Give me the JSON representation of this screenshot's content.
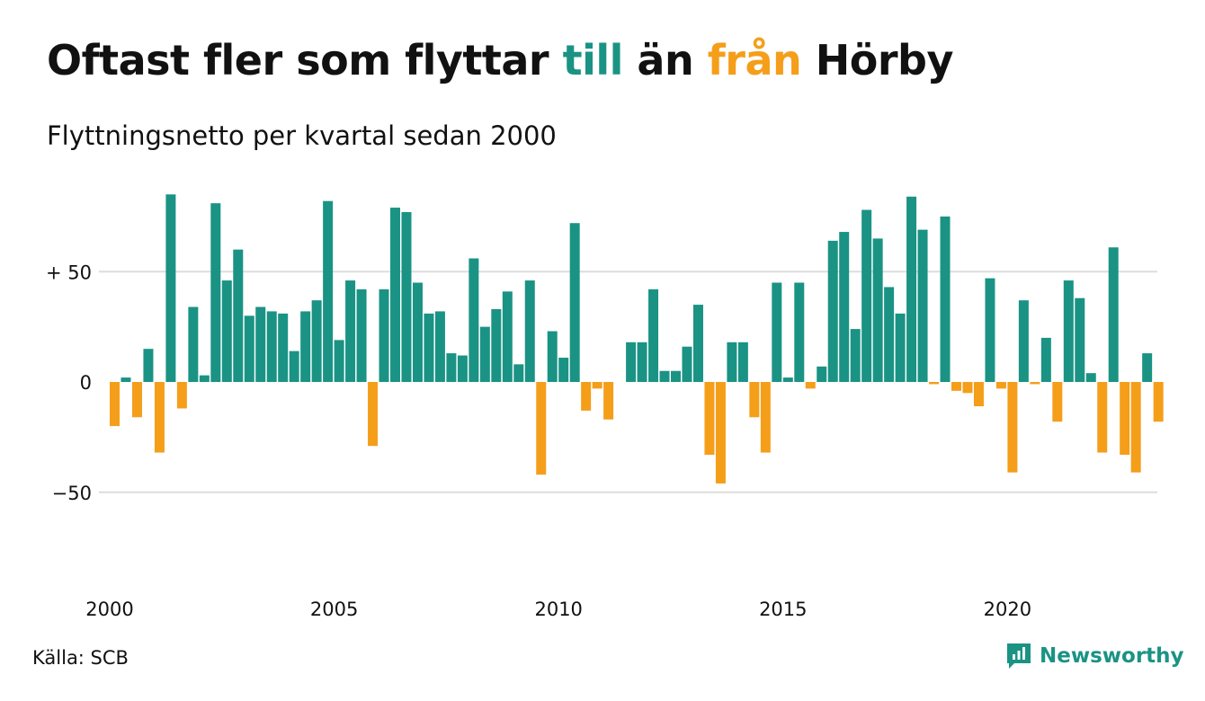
{
  "title": {
    "part1": "Oftast fler som flyttar ",
    "highlight_to": "till",
    "part2": " än ",
    "highlight_from": "från",
    "part3": " Hörby"
  },
  "subtitle": "Flyttningsnetto per kvartal sedan 2000",
  "source": "Källa: SCB",
  "brand": "Newsworthy",
  "colors": {
    "positive": "#1a9384",
    "negative": "#f59e1a",
    "grid": "#dddddd"
  },
  "chart_data": {
    "type": "bar",
    "title": "Oftast fler som flyttar till än från Hörby",
    "subtitle": "Flyttningsnetto per kvartal sedan 2000",
    "x_start": "2000 Q1",
    "x_tick_labels": [
      "2000",
      "2005",
      "2010",
      "2015",
      "2020"
    ],
    "y_tick_labels": [
      "+ 50",
      "0",
      "−50"
    ],
    "y_tick_values": [
      50,
      0,
      -50
    ],
    "ylim": [
      -85,
      87
    ],
    "grid": true,
    "legend": "none",
    "values": [
      -20,
      2,
      -16,
      15,
      -32,
      85,
      -12,
      34,
      3,
      81,
      46,
      60,
      30,
      34,
      32,
      31,
      14,
      32,
      37,
      82,
      19,
      46,
      42,
      -29,
      42,
      79,
      77,
      45,
      31,
      32,
      13,
      12,
      56,
      25,
      33,
      41,
      8,
      46,
      -42,
      23,
      11,
      72,
      -13,
      -3,
      -17,
      0,
      18,
      18,
      42,
      5,
      5,
      16,
      35,
      -33,
      -46,
      18,
      18,
      -16,
      -32,
      45,
      2,
      45,
      -3,
      7,
      64,
      68,
      24,
      78,
      65,
      43,
      31,
      84,
      69,
      -1,
      75,
      -4,
      -5,
      -11,
      47,
      -3,
      -41,
      37,
      -1,
      20,
      -18,
      46,
      38,
      4,
      -32,
      61,
      -33,
      -41,
      13,
      -18
    ]
  }
}
